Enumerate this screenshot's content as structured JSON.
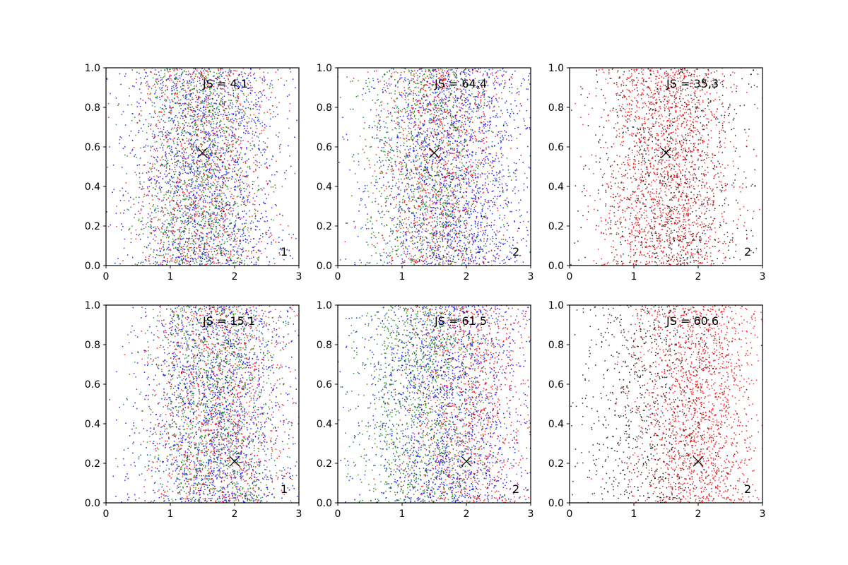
{
  "chart_data": [
    {
      "type": "scatter",
      "row": 0,
      "col": 0,
      "annotation": "JS = 4,1",
      "corner_label": "1",
      "marker": {
        "x": 1.5,
        "y": 0.57
      },
      "xlim": [
        0,
        3
      ],
      "ylim": [
        0,
        1
      ],
      "xticks": [
        "0",
        "1",
        "2",
        "3"
      ],
      "yticks": [
        "0.0",
        "0.2",
        "0.4",
        "0.6",
        "0.8",
        "1.0"
      ],
      "series": [
        {
          "color": "#0000ff",
          "count": 1700,
          "center_x": 1.5,
          "spread_x": 0.6
        },
        {
          "color": "#ff0000",
          "count": 1100,
          "center_x": 1.5,
          "spread_x": 0.55
        },
        {
          "color": "#008000",
          "count": 1100,
          "center_x": 1.45,
          "spread_x": 0.5
        }
      ]
    },
    {
      "type": "scatter",
      "row": 0,
      "col": 1,
      "annotation": "JS = 64,4",
      "corner_label": "2",
      "marker": {
        "x": 1.5,
        "y": 0.57
      },
      "xlim": [
        0,
        3
      ],
      "ylim": [
        0,
        1
      ],
      "xticks": [
        "0",
        "1",
        "2",
        "3"
      ],
      "yticks": [
        "0.0",
        "0.2",
        "0.4",
        "0.6",
        "0.8",
        "1.0"
      ],
      "series": [
        {
          "color": "#0000ff",
          "count": 1800,
          "center_x": 1.8,
          "spread_x": 0.65
        },
        {
          "color": "#ff0000",
          "count": 1100,
          "center_x": 1.6,
          "spread_x": 0.5
        },
        {
          "color": "#008000",
          "count": 1000,
          "center_x": 1.4,
          "spread_x": 0.5
        }
      ]
    },
    {
      "type": "scatter",
      "row": 0,
      "col": 2,
      "annotation": "JS = 35,3",
      "corner_label": "2",
      "marker": {
        "x": 1.5,
        "y": 0.57
      },
      "xlim": [
        0,
        3
      ],
      "ylim": [
        0,
        1
      ],
      "xticks": [
        "0",
        "1",
        "2",
        "3"
      ],
      "yticks": [
        "0.0",
        "0.2",
        "0.4",
        "0.6",
        "0.8",
        "1.0"
      ],
      "series": [
        {
          "color": "#000000",
          "count": 1000,
          "center_x": 1.6,
          "spread_x": 0.65
        },
        {
          "color": "#ff0000",
          "count": 1700,
          "center_x": 1.5,
          "spread_x": 0.5
        }
      ]
    },
    {
      "type": "scatter",
      "row": 1,
      "col": 0,
      "annotation": "JS = 15,1",
      "corner_label": "1",
      "marker": {
        "x": 2.0,
        "y": 0.21
      },
      "xlim": [
        0,
        3
      ],
      "ylim": [
        0,
        1
      ],
      "xticks": [
        "0",
        "1",
        "2",
        "3"
      ],
      "yticks": [
        "0.0",
        "0.2",
        "0.4",
        "0.6",
        "0.8",
        "1.0"
      ],
      "series": [
        {
          "color": "#0000ff",
          "count": 1700,
          "center_x": 1.7,
          "spread_x": 0.6
        },
        {
          "color": "#ff0000",
          "count": 1100,
          "center_x": 1.75,
          "spread_x": 0.55
        },
        {
          "color": "#008000",
          "count": 1100,
          "center_x": 1.7,
          "spread_x": 0.5
        }
      ]
    },
    {
      "type": "scatter",
      "row": 1,
      "col": 1,
      "annotation": "JS = 61,5",
      "corner_label": "2",
      "marker": {
        "x": 2.0,
        "y": 0.21
      },
      "xlim": [
        0,
        3
      ],
      "ylim": [
        0,
        1
      ],
      "xticks": [
        "0",
        "1",
        "2",
        "3"
      ],
      "yticks": [
        "0.0",
        "0.2",
        "0.4",
        "0.6",
        "0.8",
        "1.0"
      ],
      "series": [
        {
          "color": "#0000ff",
          "count": 1700,
          "center_x": 1.7,
          "spread_x": 0.65
        },
        {
          "color": "#ff0000",
          "count": 1000,
          "center_x": 2.05,
          "spread_x": 0.5
        },
        {
          "color": "#008000",
          "count": 1100,
          "center_x": 1.3,
          "spread_x": 0.5
        }
      ]
    },
    {
      "type": "scatter",
      "row": 1,
      "col": 2,
      "annotation": "JS = 60,6",
      "corner_label": "2",
      "marker": {
        "x": 2.0,
        "y": 0.21
      },
      "xlim": [
        0,
        3
      ],
      "ylim": [
        0,
        1
      ],
      "xticks": [
        "0",
        "1",
        "2",
        "3"
      ],
      "yticks": [
        "0.0",
        "0.2",
        "0.4",
        "0.6",
        "0.8",
        "1.0"
      ],
      "series": [
        {
          "color": "#000000",
          "count": 900,
          "center_x": 1.3,
          "spread_x": 0.6
        },
        {
          "color": "#ff0000",
          "count": 1600,
          "center_x": 2.0,
          "spread_x": 0.5
        }
      ]
    }
  ]
}
